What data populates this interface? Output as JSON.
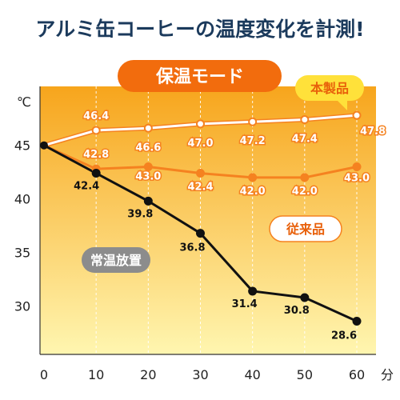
{
  "title": "アルミ缶コーヒーの温度変化を計測!",
  "mode_label": "保温モード",
  "chart_data": {
    "type": "line",
    "title": "アルミ缶コーヒーの温度変化を計測!",
    "ylabel": "℃",
    "xlabel_unit": "分",
    "x": [
      0,
      10,
      20,
      30,
      40,
      50,
      60
    ],
    "xlim": [
      0,
      60
    ],
    "ylim": [
      25.5,
      50.5
    ],
    "yticks": [
      30,
      35,
      40,
      45
    ],
    "grid": "vertical",
    "series": [
      {
        "name": "本製品",
        "color": "#ffffff",
        "values": [
          45.0,
          46.4,
          46.6,
          47.0,
          47.2,
          47.4,
          47.8
        ],
        "labels": [
          "",
          "46.4",
          "46.6",
          "47.0",
          "47.2",
          "47.4",
          "47.8"
        ]
      },
      {
        "name": "従来品",
        "color": "#f58220",
        "values": [
          45.0,
          42.8,
          43.0,
          42.4,
          42.0,
          42.0,
          43.0
        ],
        "labels": [
          "",
          "42.8",
          "43.0",
          "42.4",
          "42.0",
          "42.0",
          "43.0"
        ]
      },
      {
        "name": "常温放置",
        "color": "#111111",
        "values": [
          45.0,
          42.4,
          39.8,
          36.8,
          31.4,
          30.8,
          28.6
        ],
        "labels": [
          "",
          "42.4",
          "39.8",
          "36.8",
          "31.4",
          "30.8",
          "28.6"
        ]
      }
    ]
  },
  "colors": {
    "title": "#1b3a5c",
    "plot_top": "#f7a51c",
    "plot_bottom": "#fff6b0",
    "mode_badge": "#f26c0d",
    "series1_badge": "#ffe13a",
    "series2_badge": "#ffffff",
    "series3_badge": "#8c8c8c"
  }
}
